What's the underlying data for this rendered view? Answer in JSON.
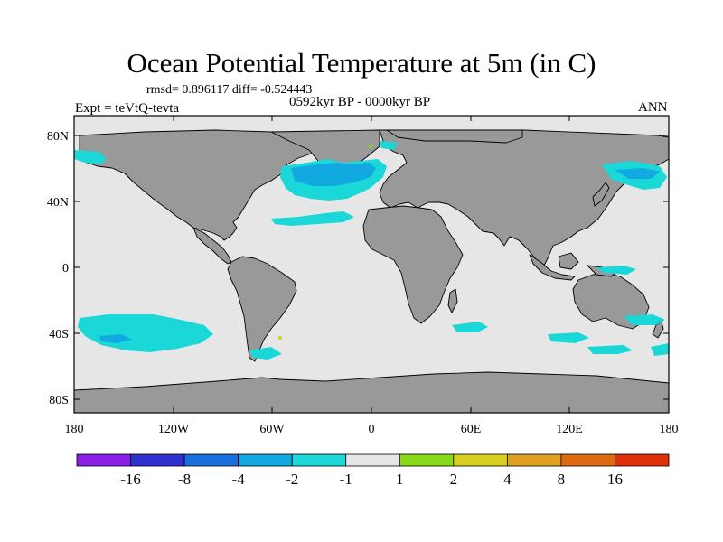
{
  "title": "Ocean Potential Temperature at 5m (in C)",
  "stats": "rmsd= 0.896117 diff= -0.524443",
  "period": "0592kyr BP - 0000kyr BP",
  "experiment": "Expt = teVtQ-tevta",
  "season": "ANN",
  "lat_ticks": [
    "80N",
    "40N",
    "0",
    "40S",
    "80S"
  ],
  "lon_ticks": [
    "180",
    "120W",
    "60W",
    "0",
    "60E",
    "120E",
    "180"
  ],
  "colorbar": {
    "labels": [
      "-16",
      "-8",
      "-4",
      "-2",
      "-1",
      "1",
      "2",
      "4",
      "8",
      "16"
    ],
    "colors": [
      "#8a1de6",
      "#3030d0",
      "#1a6fe0",
      "#12a8e0",
      "#1ad8d8",
      "#e6e6e6",
      "#86d818",
      "#d8d020",
      "#e0a020",
      "#e06a12",
      "#e0300a"
    ]
  },
  "colors": {
    "land": "#999999",
    "ocean": "#e6e6e6",
    "cool_anomaly": "#1ad8d8",
    "strong_cool_anomaly": "#12a8e0"
  }
}
